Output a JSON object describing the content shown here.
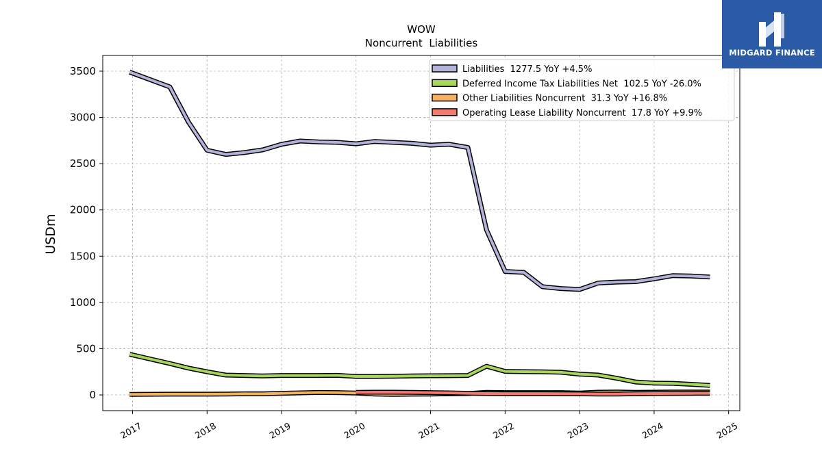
{
  "logo": {
    "text": "MIDGARD FINANCE",
    "color": "#2b5aa6"
  },
  "chart_data": {
    "type": "line",
    "title": "WOW",
    "subtitle": "Noncurrent  Liabilities",
    "ylabel": "USDm",
    "xlabel": "",
    "xlim": [
      2016.6,
      2025.15
    ],
    "ylim": [
      -170,
      3670
    ],
    "yticks": [
      0,
      500,
      1000,
      1500,
      2000,
      2500,
      3000,
      3500
    ],
    "xticks": [
      "2017",
      "2018",
      "2019",
      "2020",
      "2021",
      "2022",
      "2023",
      "2024",
      "2025"
    ],
    "grid": true,
    "legend_position": "top-right",
    "series": [
      {
        "name": "Liabilities  1277.5 YoY +4.5%",
        "color": "#b3b3d9",
        "x": [
          2016.96,
          2017.5,
          2017.75,
          2018.0,
          2018.25,
          2018.5,
          2018.75,
          2019.0,
          2019.25,
          2019.5,
          2019.75,
          2020.0,
          2020.25,
          2020.5,
          2020.75,
          2021.0,
          2021.25,
          2021.5,
          2021.75,
          2022.0,
          2022.25,
          2022.5,
          2022.75,
          2023.0,
          2023.25,
          2023.5,
          2023.75,
          2024.0,
          2024.25,
          2024.5,
          2024.75
        ],
        "y": [
          3490,
          3330,
          2950,
          2645,
          2600,
          2620,
          2650,
          2710,
          2745,
          2735,
          2730,
          2715,
          2740,
          2730,
          2720,
          2700,
          2710,
          2675,
          1785,
          1335,
          1325,
          1170,
          1150,
          1140,
          1210,
          1220,
          1225,
          1255,
          1290,
          1285,
          1275
        ]
      },
      {
        "name": "Deferred Income Tax Liabilities Net  102.5 YoY -26.0%",
        "color": "#a6d65c",
        "x": [
          2016.96,
          2017.5,
          2017.75,
          2018.0,
          2018.25,
          2018.5,
          2018.75,
          2019.0,
          2019.25,
          2019.5,
          2019.75,
          2020.0,
          2020.25,
          2020.5,
          2020.75,
          2021.0,
          2021.25,
          2021.5,
          2021.75,
          2022.0,
          2022.25,
          2022.5,
          2022.75,
          2023.0,
          2023.25,
          2023.5,
          2023.75,
          2024.0,
          2024.25,
          2024.5,
          2024.75
        ],
        "y": [
          440,
          340,
          290,
          250,
          215,
          210,
          205,
          210,
          210,
          210,
          212,
          200,
          200,
          202,
          205,
          207,
          208,
          210,
          310,
          255,
          252,
          250,
          245,
          225,
          215,
          180,
          140,
          128,
          125,
          115,
          103
        ]
      },
      {
        "name": "Other Liabilities Noncurrent  31.3 YoY +16.8%",
        "color": "#f5b060",
        "x": [
          2016.96,
          2017.5,
          2017.75,
          2018.0,
          2018.25,
          2018.5,
          2018.75,
          2019.0,
          2019.25,
          2019.5,
          2019.75,
          2020.0,
          2020.25,
          2020.5,
          2020.75,
          2021.0,
          2021.25,
          2021.5,
          2021.75,
          2022.0,
          2022.25,
          2022.5,
          2022.75,
          2023.0,
          2023.25,
          2023.5,
          2023.75,
          2024.0,
          2024.25,
          2024.5,
          2024.75
        ],
        "y": [
          5,
          8,
          8,
          8,
          10,
          12,
          12,
          18,
          22,
          27,
          25,
          20,
          10,
          5,
          8,
          10,
          12,
          15,
          28,
          25,
          25,
          25,
          25,
          20,
          30,
          32,
          28,
          30,
          32,
          32,
          31
        ]
      },
      {
        "name": "Operating Lease Liability Noncurrent  17.8 YoY +9.9%",
        "color": "#f07a6e",
        "x": [
          2020.0,
          2020.25,
          2020.5,
          2020.75,
          2021.0,
          2021.25,
          2021.5,
          2021.75,
          2022.0,
          2022.25,
          2022.5,
          2022.75,
          2023.0,
          2023.25,
          2023.5,
          2023.75,
          2024.0,
          2024.25,
          2024.5,
          2024.75
        ],
        "y": [
          28,
          30,
          30,
          28,
          25,
          22,
          18,
          15,
          14,
          14,
          14,
          13,
          12,
          10,
          10,
          13,
          15,
          16,
          17,
          18
        ]
      }
    ]
  }
}
